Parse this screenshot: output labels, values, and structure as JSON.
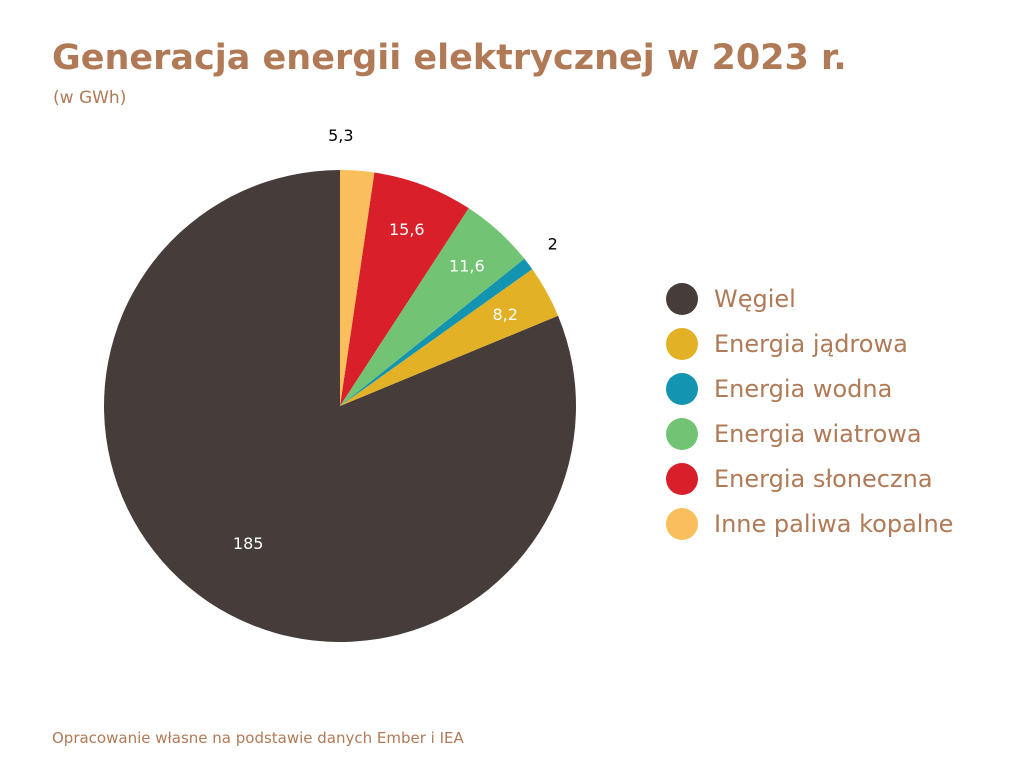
{
  "chart_data": {
    "type": "pie",
    "title": "Generacja energii elektrycznej w 2023 r.",
    "subtitle": "(w GWh)",
    "legend_position": "right",
    "categories": [
      "Węgiel",
      "Energia jądrowa",
      "Energia wodna",
      "Energia wiatrowa",
      "Energia słoneczna",
      "Inne paliwa kopalne"
    ],
    "values": [
      185,
      8.2,
      2,
      11.6,
      15.6,
      5.3
    ],
    "data_labels": [
      "185",
      "8,2",
      "2",
      "11,6",
      "15,6",
      "5,3"
    ],
    "colors": [
      "#463D3B",
      "#E2B126",
      "#1395B1",
      "#72C474",
      "#D81F2A",
      "#FBBE5C"
    ],
    "label_colors": [
      "#ffffff",
      "#ffffff",
      "#000000",
      "#ffffff",
      "#ffffff",
      "#000000"
    ]
  },
  "footer": {
    "source": "Opracowanie własne na podstawie danych Ember i IEA"
  }
}
